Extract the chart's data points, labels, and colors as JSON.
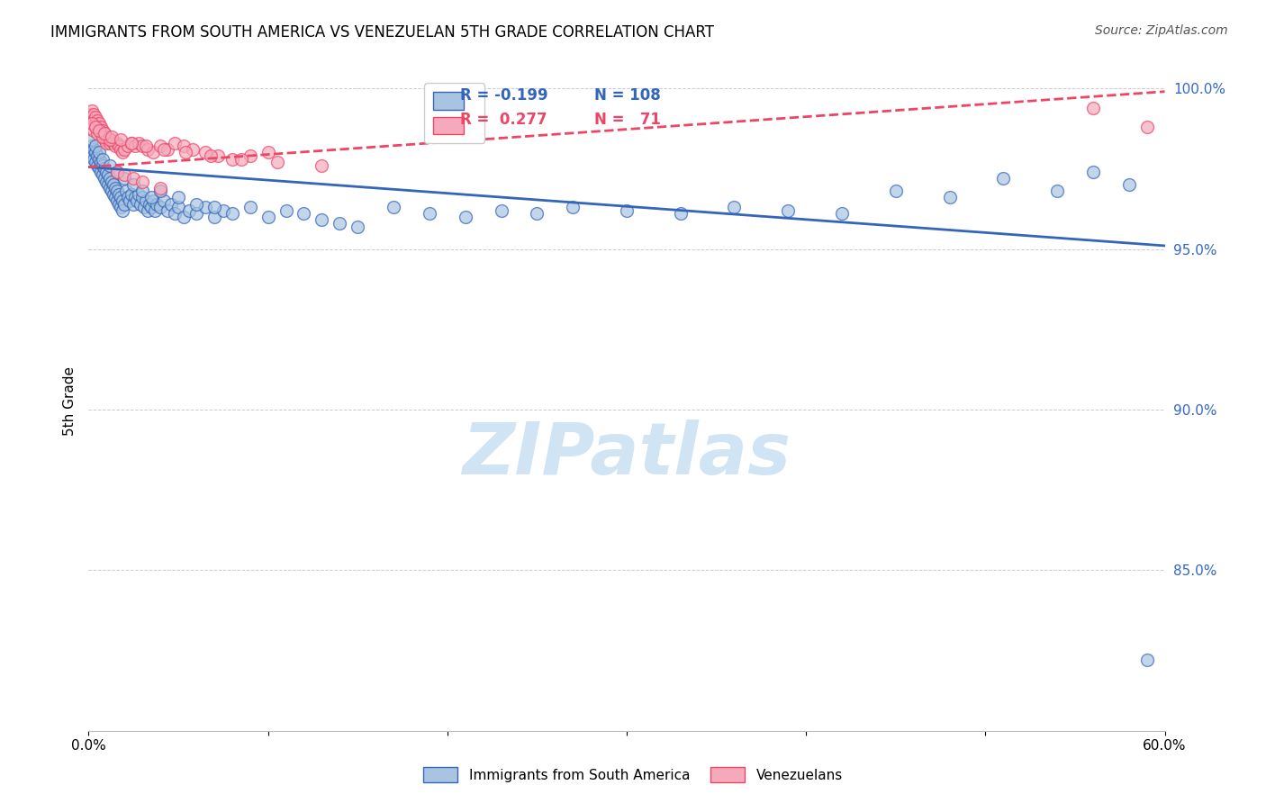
{
  "title": "IMMIGRANTS FROM SOUTH AMERICA VS VENEZUELAN 5TH GRADE CORRELATION CHART",
  "source": "Source: ZipAtlas.com",
  "ylabel": "5th Grade",
  "r_blue": -0.199,
  "n_blue": 108,
  "r_pink": 0.277,
  "n_pink": 71,
  "blue_color": "#A8C4E0",
  "pink_color": "#F4AABB",
  "trendline_blue": "#3366BB",
  "trendline_pink": "#EE4466",
  "watermark_color": "#D0E4F4",
  "legend_label_blue": "Immigrants from South America",
  "legend_label_pink": "Venezuelans",
  "blue_x": [
    0.001,
    0.002,
    0.002,
    0.003,
    0.003,
    0.004,
    0.004,
    0.005,
    0.005,
    0.006,
    0.006,
    0.007,
    0.007,
    0.008,
    0.008,
    0.009,
    0.009,
    0.01,
    0.01,
    0.011,
    0.011,
    0.012,
    0.012,
    0.013,
    0.013,
    0.014,
    0.014,
    0.015,
    0.015,
    0.016,
    0.016,
    0.017,
    0.017,
    0.018,
    0.018,
    0.019,
    0.019,
    0.02,
    0.021,
    0.022,
    0.023,
    0.024,
    0.025,
    0.026,
    0.027,
    0.028,
    0.029,
    0.03,
    0.031,
    0.032,
    0.033,
    0.034,
    0.035,
    0.036,
    0.037,
    0.038,
    0.04,
    0.042,
    0.044,
    0.046,
    0.048,
    0.05,
    0.053,
    0.056,
    0.06,
    0.065,
    0.07,
    0.075,
    0.08,
    0.09,
    0.1,
    0.11,
    0.12,
    0.13,
    0.14,
    0.15,
    0.17,
    0.19,
    0.21,
    0.23,
    0.25,
    0.27,
    0.3,
    0.33,
    0.36,
    0.39,
    0.42,
    0.45,
    0.48,
    0.51,
    0.54,
    0.56,
    0.58,
    0.002,
    0.004,
    0.006,
    0.008,
    0.012,
    0.016,
    0.02,
    0.025,
    0.03,
    0.035,
    0.04,
    0.05,
    0.06,
    0.07,
    0.59
  ],
  "blue_y": [
    0.98,
    0.982,
    0.979,
    0.981,
    0.978,
    0.98,
    0.977,
    0.979,
    0.976,
    0.978,
    0.975,
    0.977,
    0.974,
    0.976,
    0.973,
    0.975,
    0.972,
    0.974,
    0.971,
    0.973,
    0.97,
    0.972,
    0.969,
    0.971,
    0.968,
    0.97,
    0.967,
    0.969,
    0.966,
    0.968,
    0.965,
    0.967,
    0.964,
    0.966,
    0.963,
    0.965,
    0.962,
    0.964,
    0.968,
    0.966,
    0.965,
    0.967,
    0.964,
    0.966,
    0.965,
    0.967,
    0.964,
    0.966,
    0.963,
    0.965,
    0.962,
    0.964,
    0.963,
    0.965,
    0.962,
    0.964,
    0.963,
    0.965,
    0.962,
    0.964,
    0.961,
    0.963,
    0.96,
    0.962,
    0.961,
    0.963,
    0.96,
    0.962,
    0.961,
    0.963,
    0.96,
    0.962,
    0.961,
    0.959,
    0.958,
    0.957,
    0.963,
    0.961,
    0.96,
    0.962,
    0.961,
    0.963,
    0.962,
    0.961,
    0.963,
    0.962,
    0.961,
    0.968,
    0.966,
    0.972,
    0.968,
    0.974,
    0.97,
    0.984,
    0.982,
    0.98,
    0.978,
    0.976,
    0.974,
    0.972,
    0.97,
    0.968,
    0.966,
    0.968,
    0.966,
    0.964,
    0.963,
    0.822
  ],
  "pink_x": [
    0.001,
    0.002,
    0.002,
    0.003,
    0.003,
    0.004,
    0.004,
    0.005,
    0.005,
    0.006,
    0.006,
    0.007,
    0.007,
    0.008,
    0.008,
    0.009,
    0.009,
    0.01,
    0.01,
    0.011,
    0.012,
    0.013,
    0.014,
    0.015,
    0.016,
    0.017,
    0.018,
    0.019,
    0.02,
    0.022,
    0.024,
    0.026,
    0.028,
    0.03,
    0.033,
    0.036,
    0.04,
    0.044,
    0.048,
    0.053,
    0.058,
    0.065,
    0.072,
    0.08,
    0.09,
    0.1,
    0.003,
    0.005,
    0.008,
    0.012,
    0.016,
    0.02,
    0.025,
    0.03,
    0.04,
    0.002,
    0.004,
    0.006,
    0.009,
    0.013,
    0.018,
    0.024,
    0.032,
    0.042,
    0.054,
    0.068,
    0.085,
    0.105,
    0.13,
    0.56,
    0.59
  ],
  "pink_y": [
    0.992,
    0.993,
    0.991,
    0.992,
    0.99,
    0.991,
    0.989,
    0.99,
    0.988,
    0.989,
    0.987,
    0.988,
    0.986,
    0.987,
    0.985,
    0.986,
    0.984,
    0.985,
    0.983,
    0.984,
    0.983,
    0.984,
    0.983,
    0.982,
    0.983,
    0.982,
    0.981,
    0.98,
    0.981,
    0.982,
    0.983,
    0.982,
    0.983,
    0.982,
    0.981,
    0.98,
    0.982,
    0.981,
    0.983,
    0.982,
    0.981,
    0.98,
    0.979,
    0.978,
    0.979,
    0.98,
    0.987,
    0.986,
    0.985,
    0.984,
    0.974,
    0.973,
    0.972,
    0.971,
    0.969,
    0.989,
    0.988,
    0.987,
    0.986,
    0.985,
    0.984,
    0.983,
    0.982,
    0.981,
    0.98,
    0.979,
    0.978,
    0.977,
    0.976,
    0.994,
    0.988
  ],
  "xlim": [
    0.0,
    0.6
  ],
  "ylim": [
    0.8,
    1.005
  ],
  "yticks": [
    0.85,
    0.9,
    0.95,
    1.0
  ],
  "ytick_labels": [
    "85.0%",
    "90.0%",
    "95.0%",
    "100.0%"
  ],
  "xticks": [
    0.0,
    0.1,
    0.2,
    0.3,
    0.4,
    0.5,
    0.6
  ],
  "xtick_labels": [
    "0.0%",
    "",
    "",
    "",
    "",
    "",
    "60.0%"
  ]
}
